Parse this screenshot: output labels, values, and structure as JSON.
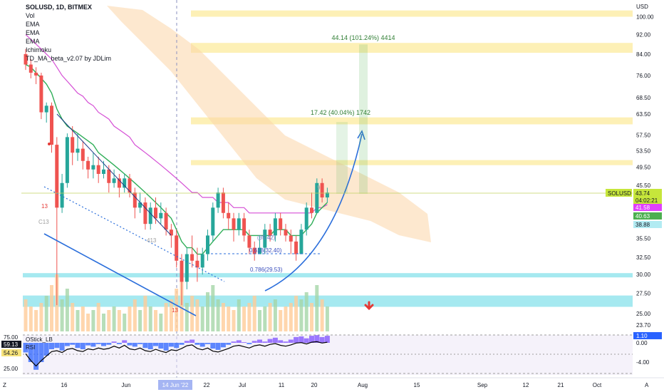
{
  "legend": {
    "symbol": "SOLUSD, 1D, BITMEX",
    "indicators": [
      "Vol",
      "EMA",
      "EMA",
      "EMA",
      "Ichimoku",
      "TD_MA_beta_v2.07 by JDLim"
    ]
  },
  "axis": {
    "currency": "USD",
    "price_ticks": [
      "100.00",
      "92.00",
      "84.00",
      "76.00",
      "68.50",
      "63.50",
      "57.50",
      "53.50",
      "49.50",
      "45.50",
      "41.50",
      "38.00",
      "35.50",
      "32.50",
      "30.00",
      "27.50",
      "25.00",
      "23.70"
    ],
    "time_ticks": [
      "16",
      "Jun",
      "22",
      "Jul",
      "11",
      "20",
      "Aug",
      "15",
      "Sep",
      "12",
      "21",
      "Oct"
    ],
    "cursor_date": "14 Jun '22",
    "scale_mode": "A",
    "reset_icon": "Z"
  },
  "price_labels": {
    "symbol_tag": "SOLUSD",
    "last": "43.74",
    "countdown": "04:02:21",
    "ema1": "41.58",
    "ema2": "40.63",
    "ema3": "38.88"
  },
  "annotations": {
    "target_big": "44.14 (101.24%) 4414",
    "target_small": "17.42 (40.04%) 1742",
    "fib_618": "0.618(32.40)",
    "fib_786": "0.786(29.53)",
    "fib_5": "(35.42)",
    "td_13_a": "13",
    "td_13_b": "13",
    "td_c13": "C13",
    "td_413": "413",
    "td_9": "9"
  },
  "oscillator": {
    "name": "OStick_LB",
    "sub": "RSI",
    "left_ticks": [
      "75.00",
      "59.13",
      "54.26",
      "25.00"
    ],
    "right_ticks": [
      "1.10",
      "0.00",
      "-4.00"
    ]
  },
  "colors": {
    "up": "#26a69a",
    "down": "#ef5350",
    "zone": "#fbe47a",
    "cyan_zone": "#7fe0ea",
    "cloud": "#fbd5a8",
    "arrow": "#2a6edb",
    "measure": "#4caf50"
  },
  "chart_data": {
    "type": "candlestick",
    "title": "SOLUSD, 1D, BITMEX",
    "ylim": [
      23.0,
      106.0
    ],
    "y_scale": "log",
    "x_labels": [
      "16",
      "Jun",
      "22",
      "Jul",
      "11",
      "20",
      "Aug",
      "15",
      "Sep",
      "12",
      "21",
      "Oct"
    ],
    "resistance_zones": [
      [
        100.0,
        103.0
      ],
      [
        84.5,
        88.5
      ],
      [
        60.5,
        62.5
      ],
      [
        50.0,
        51.2
      ]
    ],
    "support_zones": [
      [
        29.6,
        30.2
      ],
      [
        25.8,
        27.2
      ]
    ],
    "fib_levels": [
      {
        "label": "0.618",
        "value": 32.4
      },
      {
        "label": "0.786",
        "value": 29.53
      }
    ],
    "measure_targets": [
      {
        "from": 43.74,
        "to": 61.16,
        "label": "17.42 (40.04%) 1742"
      },
      {
        "from": 43.74,
        "to": 87.88,
        "label": "44.14 (101.24%) 4414"
      }
    ],
    "candles": [
      [
        84,
        80,
        86,
        78
      ],
      [
        80,
        77,
        82,
        75
      ],
      [
        77,
        76,
        79,
        73
      ],
      [
        76,
        64,
        77,
        62
      ],
      [
        64,
        66,
        67,
        61
      ],
      [
        66,
        55,
        67,
        53
      ],
      [
        55,
        41,
        57,
        26
      ],
      [
        41,
        46,
        48,
        40
      ],
      [
        46,
        57,
        58,
        45
      ],
      [
        57,
        53,
        60,
        50
      ],
      [
        53,
        54,
        58,
        51
      ],
      [
        54,
        51,
        56,
        49
      ],
      [
        51,
        49,
        52,
        47
      ],
      [
        49,
        50,
        53,
        47
      ],
      [
        50,
        48,
        52,
        46
      ],
      [
        48,
        49,
        51,
        47
      ],
      [
        49,
        46,
        50,
        44
      ],
      [
        46,
        47,
        49,
        45
      ],
      [
        47,
        45,
        48,
        43
      ],
      [
        45,
        47,
        48,
        44
      ],
      [
        47,
        44,
        48,
        43
      ],
      [
        44,
        41,
        45,
        39
      ],
      [
        41,
        42,
        44,
        40
      ],
      [
        42,
        38,
        43,
        37
      ],
      [
        38,
        41,
        42,
        37
      ],
      [
        41,
        39,
        43,
        38
      ],
      [
        39,
        40,
        42,
        38
      ],
      [
        40,
        37,
        41,
        36
      ],
      [
        37,
        36,
        38,
        34
      ],
      [
        36,
        32,
        37,
        31
      ],
      [
        32,
        29,
        33,
        26
      ],
      [
        29,
        33,
        34,
        28
      ],
      [
        33,
        32,
        36,
        31
      ],
      [
        32,
        31,
        34,
        29
      ],
      [
        31,
        33,
        34,
        30
      ],
      [
        33,
        36,
        37,
        32
      ],
      [
        36,
        41,
        42,
        35
      ],
      [
        41,
        44,
        45,
        40
      ],
      [
        44,
        40,
        45,
        39
      ],
      [
        40,
        39,
        42,
        37
      ],
      [
        39,
        37,
        40,
        35
      ],
      [
        37,
        39,
        40,
        36
      ],
      [
        39,
        36,
        40,
        35
      ],
      [
        36,
        34,
        37,
        33
      ],
      [
        34,
        33,
        35,
        32
      ],
      [
        33,
        34,
        36,
        33
      ],
      [
        34,
        37,
        38,
        33
      ],
      [
        37,
        36,
        38,
        35
      ],
      [
        36,
        39,
        40,
        35
      ],
      [
        39,
        37,
        40,
        36
      ],
      [
        37,
        36,
        38,
        35
      ],
      [
        36,
        35,
        37,
        33
      ],
      [
        35,
        33,
        36,
        32
      ],
      [
        33,
        37,
        38,
        33
      ],
      [
        37,
        41,
        42,
        36
      ],
      [
        41,
        40,
        44,
        39
      ],
      [
        40,
        46,
        47,
        40
      ],
      [
        46,
        43,
        47,
        42
      ],
      [
        43,
        44,
        45,
        42
      ]
    ],
    "volume": [
      9,
      7,
      6,
      8,
      10,
      13,
      16,
      9,
      12,
      8,
      6,
      7,
      5,
      6,
      8,
      5,
      6,
      7,
      6,
      5,
      7,
      9,
      6,
      10,
      7,
      6,
      5,
      8,
      9,
      12,
      14,
      8,
      10,
      9,
      7,
      11,
      13,
      9,
      8,
      7,
      6,
      9,
      7,
      8,
      10,
      6,
      7,
      8,
      9,
      6,
      7,
      8,
      10,
      9,
      11,
      8,
      13,
      9,
      7
    ],
    "ema_fast": [
      80,
      79,
      77,
      75,
      73,
      70,
      65,
      62,
      60,
      59,
      58,
      57,
      56,
      55,
      53,
      52,
      51,
      50,
      49,
      48,
      47,
      46,
      45,
      44,
      43,
      42,
      41,
      40,
      39,
      37,
      35,
      34,
      34,
      33,
      33,
      34,
      35,
      36,
      37,
      37,
      37,
      37,
      37,
      36,
      36,
      36,
      36,
      36,
      37,
      37,
      37,
      36,
      36,
      36,
      37,
      38,
      40,
      41,
      42
    ],
    "ema_mid": [
      92,
      90,
      88,
      86,
      84,
      82,
      79,
      76,
      74,
      72,
      70,
      69,
      67,
      66,
      64,
      63,
      62,
      60,
      59,
      58,
      57,
      55,
      54,
      53,
      52,
      51,
      50,
      49,
      48,
      47,
      46,
      45,
      44,
      44,
      43,
      43,
      43,
      42,
      42,
      42,
      41,
      41,
      41,
      40,
      40,
      40,
      40,
      40,
      40,
      40,
      40,
      40,
      40,
      40,
      40,
      40,
      41,
      41,
      41.6
    ],
    "oscillator_values": [
      -1.5,
      -3.0,
      -4.2,
      -3.0,
      -2.0,
      -1.0,
      -0.8,
      -1.2,
      -0.5,
      -0.3,
      -0.8,
      -1.0,
      -0.4,
      -0.6,
      -0.2,
      -0.5,
      -0.3,
      0.2,
      -0.2,
      0.4,
      -0.4,
      -0.6,
      -0.2,
      -0.8,
      -1.0,
      -0.5,
      -0.9,
      -1.2,
      -0.6,
      -0.8,
      -0.3,
      0.3,
      0.5,
      -0.3,
      -0.6,
      -0.2,
      -0.9,
      -1.1,
      -0.7,
      -0.3,
      0.2,
      0.4,
      0.1,
      -0.2,
      0.3,
      0.5,
      0.2,
      0.6,
      0.8,
      0.4,
      0.2,
      0.5,
      0.9,
      1.0,
      0.7,
      1.1,
      1.2,
      0.9,
      1.1
    ]
  }
}
